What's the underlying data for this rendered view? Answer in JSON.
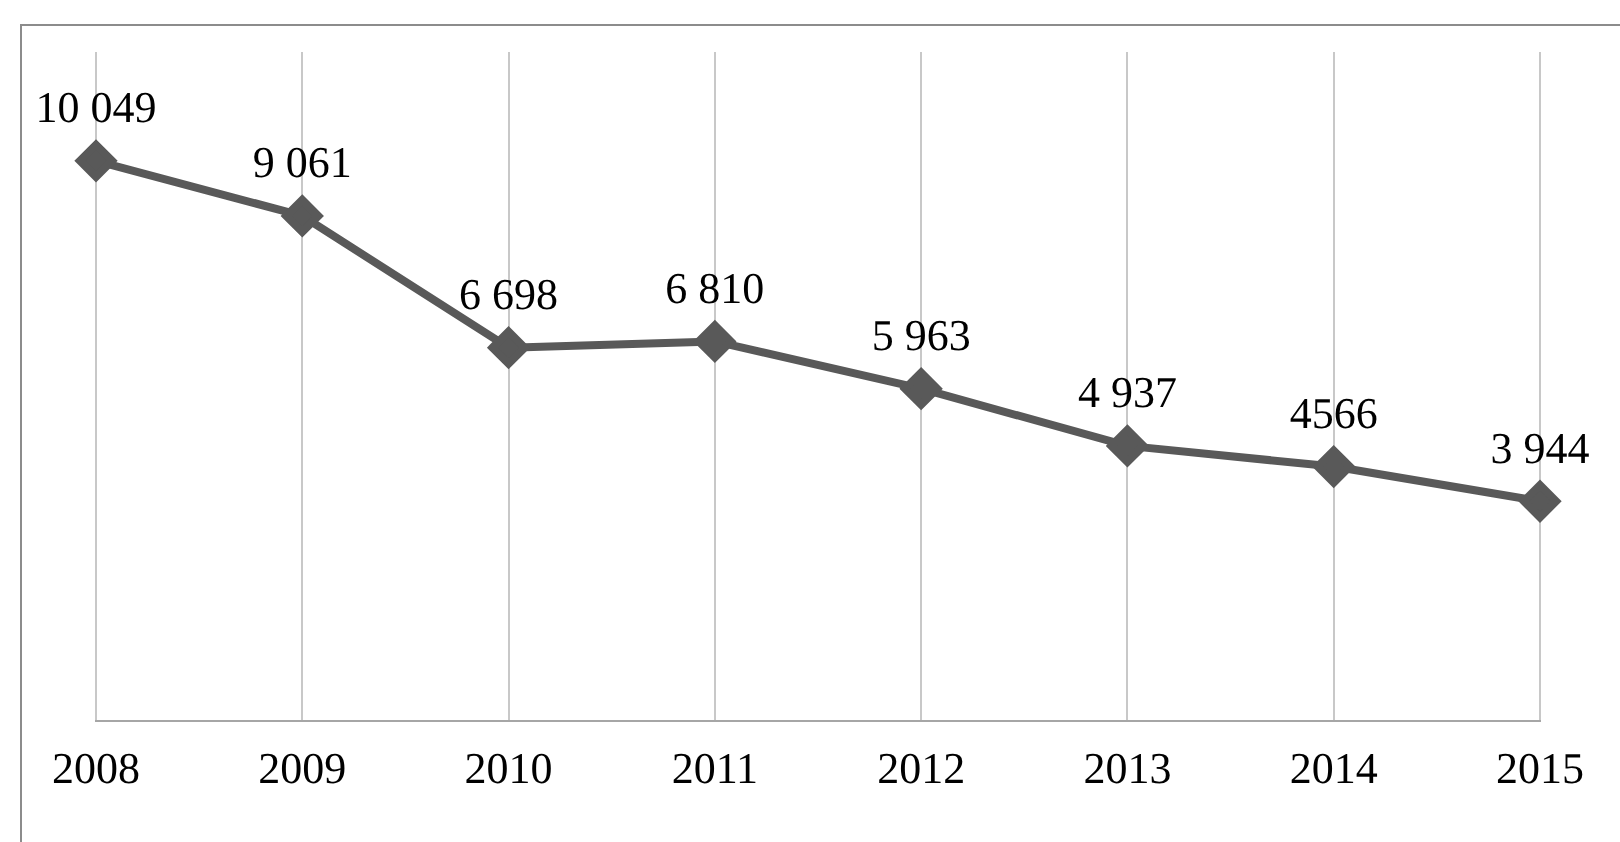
{
  "chart_data": {
    "type": "line",
    "categories": [
      "2008",
      "2009",
      "2010",
      "2011",
      "2012",
      "2013",
      "2014",
      "2015"
    ],
    "series": [
      {
        "color": "#595959",
        "values": [
          10049,
          9061,
          6698,
          6810,
          5963,
          4937,
          4566,
          3944
        ],
        "value_labels": [
          "10 049",
          "9 061",
          "6 698",
          "6 810",
          "5 963",
          "4 937",
          "4566",
          "3 944"
        ]
      }
    ],
    "ylim": [
      0,
      12000
    ],
    "tick_labels": "x",
    "grid": "x",
    "marker": "diamond",
    "line_style": "solid",
    "legend": false
  }
}
